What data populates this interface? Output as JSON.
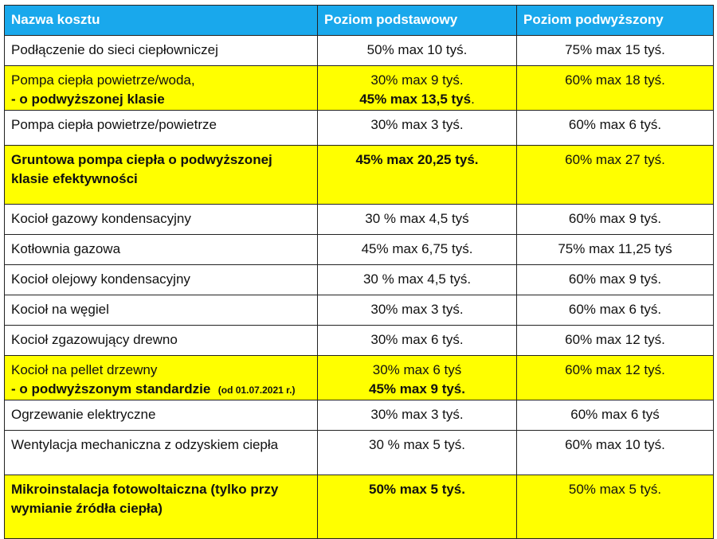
{
  "headers": {
    "name": "Nazwa kosztu",
    "basic": "Poziom podstawowy",
    "raised": "Poziom podwyższony"
  },
  "rows": {
    "r1": {
      "name": "Podłączenie do sieci ciepłowniczej",
      "basic": "50% max 10 tyś.",
      "raised": "75% max 15 tyś."
    },
    "r2": {
      "name_line1": "Pompa ciepła powietrze/woda,",
      "name_line2": "- o podwyższonej klasie",
      "basic_line1": "30% max 9 tyś.",
      "basic_line2": "45% max 13,5 tyś",
      "basic_line2_tail": ".",
      "raised": "60% max 18 tyś."
    },
    "r3": {
      "name": "Pompa ciepła powietrze/powietrze",
      "basic": "30% max 3 tyś.",
      "raised": "60% max 6 tyś."
    },
    "r4": {
      "name_line1": "Gruntowa pompa ciepła o podwyższonej",
      "name_line2": "klasie efektywności",
      "basic": "45% max 20,25 tyś.",
      "raised": "60% max 27 tyś."
    },
    "r5": {
      "name": "Kocioł gazowy kondensacyjny",
      "basic": "30 % max 4,5 tyś",
      "raised": "60% max 9 tyś."
    },
    "r6": {
      "name": "Kotłownia gazowa",
      "basic": "45% max 6,75 tyś.",
      "raised": "75% max 11,25 tyś"
    },
    "r7": {
      "name": "Kocioł olejowy kondensacyjny",
      "basic": "30 % max 4,5 tyś.",
      "raised": "60% max 9 tyś."
    },
    "r8": {
      "name": "Kocioł na węgiel",
      "basic": "30% max 3 tyś.",
      "raised": "60% max 6 tyś."
    },
    "r9": {
      "name": "Kocioł zgazowujący drewno",
      "basic": "30% max 6 tyś.",
      "raised": "60% max 12 tyś."
    },
    "r10": {
      "name_line1": "Kocioł na pellet drzewny",
      "name_line2": "- o podwyższonym standardzie",
      "name_note": "(od 01.07.2021 r.)",
      "basic_line1": "30% max 6 tyś",
      "basic_line2": "45% max 9 tyś.",
      "raised": "60% max 12 tyś."
    },
    "r11": {
      "name": "Ogrzewanie elektryczne",
      "basic": "30% max 3 tyś.",
      "raised": "60% max 6 tyś"
    },
    "r12": {
      "name": "Wentylacja mechaniczna z odzyskiem ciepła",
      "basic": "30 % max 5 tyś.",
      "raised": "60% max 10 tyś."
    },
    "r13": {
      "name_line1": "Mikroinstalacja fotowoltaiczna (tylko przy",
      "name_line2": "wymianie źródła ciepła)",
      "basic": "50% max 5 tyś.",
      "raised": "50% max 5 tyś."
    }
  },
  "colors": {
    "header_bg": "#19a8ec",
    "highlight_bg": "#ffff00",
    "border": "#222222"
  }
}
